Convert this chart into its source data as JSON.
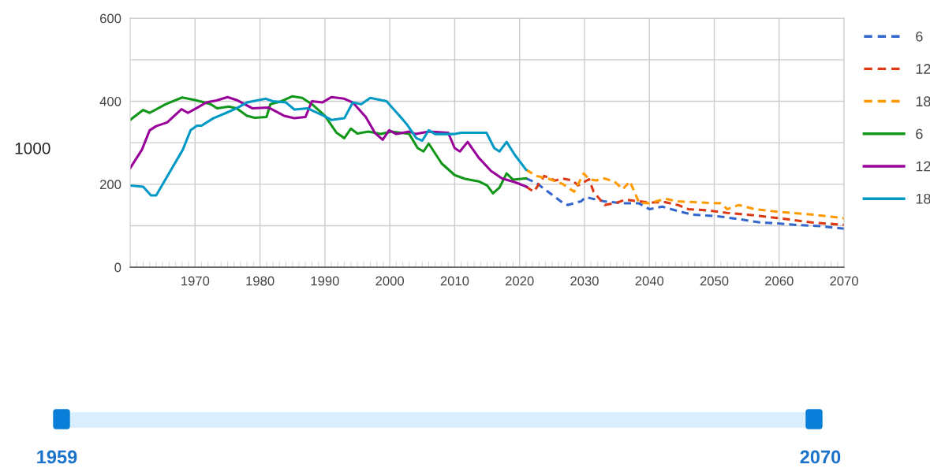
{
  "chart_data": {
    "type": "line",
    "ylabel": "1000",
    "xlim": [
      1960,
      2070
    ],
    "xticks": [
      1970,
      1980,
      1990,
      2000,
      2010,
      2020,
      2030,
      2040,
      2050,
      2060,
      2070
    ],
    "ylim": [
      0,
      600
    ],
    "yticks": [
      0,
      {
        "value": 100,
        "label": null
      },
      200,
      {
        "value": 300,
        "label": null
      },
      400,
      {
        "value": 500,
        "label": null
      },
      600
    ],
    "grid": true,
    "legend": "right",
    "annotations": [
      "1959",
      "2070"
    ],
    "series": [
      {
        "name": "6",
        "color": "#3366cc",
        "line_style": "dashed",
        "x": [
          2021,
          2022.6,
          2024.2,
          2026.6,
          2027.4,
          2029.5,
          2030.2,
          2031.8,
          2033,
          2035.9,
          2038.4,
          2040,
          2042,
          2044,
          2046.5,
          2050.5,
          2053.8,
          2057,
          2059.4,
          2062.7,
          2066.3,
          2070
        ],
        "values": [
          214,
          203,
          184,
          156,
          150,
          159,
          169,
          163,
          159,
          154,
          154,
          140,
          146,
          137,
          127,
          123,
          116,
          108,
          106,
          102,
          99,
          93
        ]
      },
      {
        "name": "12",
        "color": "#dc3912",
        "line_style": "dashed",
        "x": [
          2021,
          2022.2,
          2023.8,
          2025.5,
          2026.6,
          2028.2,
          2029,
          2030.7,
          2031.4,
          2033.1,
          2035.1,
          2036.3,
          2038.3,
          2040,
          2042.4,
          2044.4,
          2046,
          2049,
          2052,
          2056.2,
          2060.2,
          2065,
          2070
        ],
        "values": [
          194,
          182,
          220,
          209,
          214,
          209,
          197,
          212,
          182,
          150,
          156,
          163,
          159,
          156,
          157,
          150,
          140,
          137,
          131,
          125,
          118,
          108,
          102
        ]
      },
      {
        "name": "18",
        "color": "#ff9900",
        "line_style": "dashed",
        "x": [
          2021,
          2022.6,
          2024.5,
          2026.6,
          2028.4,
          2029.9,
          2030.7,
          2031.8,
          2033,
          2034.6,
          2035.9,
          2037,
          2038.4,
          2040,
          2042.4,
          2044.4,
          2048,
          2051,
          2052,
          2053.8,
          2056.2,
          2060.2,
          2065,
          2070
        ],
        "values": [
          235,
          220,
          213,
          201,
          182,
          226,
          212,
          209,
          214,
          207,
          188,
          207,
          156,
          154,
          165,
          159,
          156,
          154,
          140,
          150,
          140,
          133,
          127,
          118
        ]
      },
      {
        "name": "6",
        "color": "#109618",
        "line_style": "solid",
        "x": [
          1960,
          1962,
          1963,
          1965.5,
          1968,
          1970,
          1972.4,
          1973.4,
          1975.2,
          1976.4,
          1978,
          1979.2,
          1981,
          1981.6,
          1983.3,
          1985,
          1986.5,
          1988,
          1990,
          1991.8,
          1993,
          1994,
          1995,
          1996.7,
          1998.6,
          2000.3,
          2003,
          2004.3,
          2005.2,
          2006,
          2008,
          2010,
          2011.6,
          2013.7,
          2015,
          2015.9,
          2016.9,
          2018,
          2019,
          2021
        ],
        "values": [
          355,
          379,
          372,
          393,
          409,
          403,
          393,
          383,
          387,
          383,
          365,
          360,
          362,
          393,
          400,
          412,
          408,
          393,
          365,
          324,
          311,
          334,
          322,
          327,
          321,
          327,
          321,
          287,
          279,
          298,
          250,
          222,
          213,
          207,
          197,
          178,
          192,
          226,
          211,
          214
        ]
      },
      {
        "name": "12",
        "color": "#990099",
        "line_style": "solid",
        "x": [
          1960,
          1961.8,
          1963,
          1964,
          1965.7,
          1967.9,
          1968.9,
          1970.3,
          1971.7,
          1973.3,
          1975,
          1976.4,
          1978.8,
          1981.3,
          1983.7,
          1985.3,
          1987,
          1988,
          1989.6,
          1991,
          1993,
          1994.3,
          1996.3,
          1997.7,
          1998.9,
          1999.9,
          2001,
          2003,
          2004,
          2006,
          2009,
          2010,
          2010.8,
          2012,
          2013.7,
          2015.6,
          2017.3,
          2019.3,
          2021.1
        ],
        "values": [
          239,
          283,
          330,
          340,
          349,
          381,
          372,
          384,
          397,
          402,
          410,
          403,
          383,
          385,
          365,
          359,
          362,
          400,
          397,
          410,
          406,
          397,
          362,
          324,
          307,
          330,
          321,
          327,
          321,
          327,
          324,
          287,
          279,
          302,
          264,
          232,
          214,
          205,
          194
        ]
      },
      {
        "name": "18",
        "color": "#0099c6",
        "line_style": "solid",
        "x": [
          1960,
          1962,
          1963.2,
          1964,
          1966.3,
          1968.1,
          1969.3,
          1970.3,
          1971,
          1972.8,
          1974.8,
          1976.4,
          1978,
          1980.9,
          1982,
          1984,
          1985.3,
          1987.3,
          1989.8,
          1991,
          1993,
          1994.3,
          1995.6,
          1997,
          1999.5,
          2001.5,
          2002.7,
          2004.1,
          2005,
          2006,
          2007,
          2010,
          2011,
          2014.9,
          2016.1,
          2016.9,
          2018,
          2019.3,
          2021
        ],
        "values": [
          197,
          194,
          173,
          173,
          235,
          283,
          330,
          341,
          341,
          359,
          372,
          383,
          397,
          406,
          400,
          397,
          380,
          383,
          365,
          355,
          359,
          397,
          393,
          408,
          400,
          365,
          343,
          311,
          305,
          330,
          321,
          321,
          324,
          324,
          287,
          279,
          302,
          270,
          235
        ]
      }
    ]
  }
}
